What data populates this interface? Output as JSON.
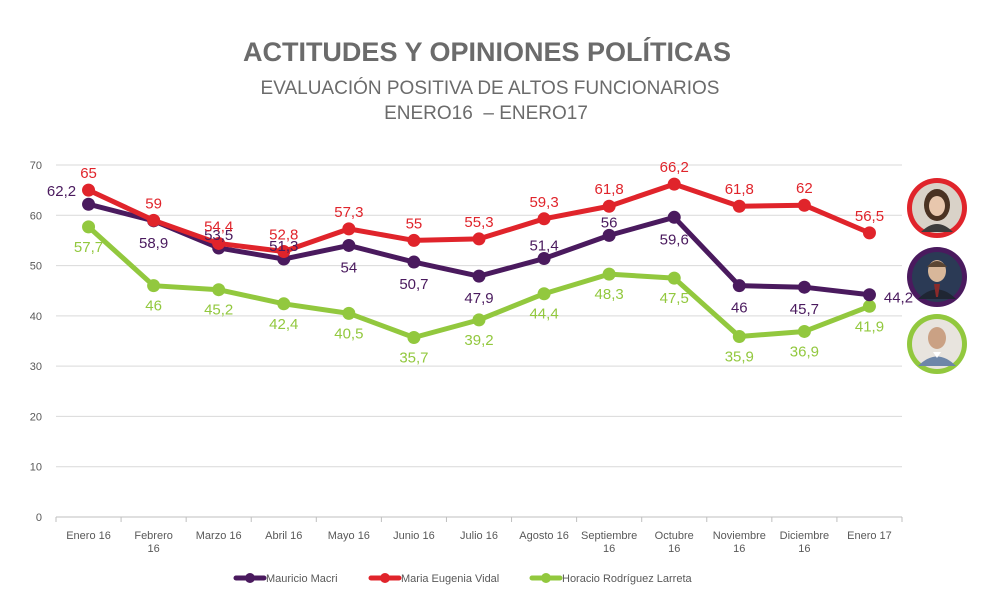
{
  "title": "ACTITUDES Y OPINIONES POLÍTICAS",
  "subtitle_line1": "EVALUACIÓN POSITIVA DE ALTOS FUNCIONARIOS",
  "subtitle_line2": "ENERO16  – ENERO17",
  "chart_data": {
    "type": "line",
    "categories": [
      "Enero 16",
      "Febrero 16",
      "Marzo 16",
      "Abril 16",
      "Mayo 16",
      "Junio 16",
      "Julio 16",
      "Agosto 16",
      "Septiembre 16",
      "Octubre 16",
      "Noviembre 16",
      "Diciembre 16",
      "Enero 17"
    ],
    "ylim": [
      0,
      70
    ],
    "yticks": [
      0,
      10,
      20,
      30,
      40,
      50,
      60,
      70
    ],
    "grid": true,
    "legend": "bottom",
    "series": [
      {
        "name": "Mauricio Macri",
        "color": "#4a1a5e",
        "values": [
          62.2,
          58.9,
          53.5,
          51.3,
          54,
          50.7,
          47.9,
          51.4,
          56,
          59.6,
          46,
          45.7,
          44.2
        ],
        "labels": [
          "62,2",
          "58,9",
          "53,5",
          "51,3",
          "54",
          "50,7",
          "47,9",
          "51,4",
          "56",
          "59,6",
          "46",
          "45,7",
          "44,2"
        ]
      },
      {
        "name": "Maria Eugenia Vidal",
        "color": "#e0242b",
        "values": [
          65,
          59,
          54.4,
          52.8,
          57.3,
          55,
          55.3,
          59.3,
          61.8,
          66.2,
          61.8,
          62,
          56.5
        ],
        "labels": [
          "65",
          "59",
          "54,4",
          "52,8",
          "57,3",
          "55",
          "55,3",
          "59,3",
          "61,8",
          "66,2",
          "61,8",
          "62",
          "56,5"
        ]
      },
      {
        "name": "Horacio Rodríguez Larreta",
        "color": "#92c83e",
        "values": [
          57.7,
          46,
          45.2,
          42.4,
          40.5,
          35.7,
          39.2,
          44.4,
          48.3,
          47.5,
          35.9,
          36.9,
          41.9
        ],
        "labels": [
          "57,7",
          "46",
          "45,2",
          "42,4",
          "40,5",
          "35,7",
          "39,2",
          "44,4",
          "48,3",
          "47,5",
          "35,9",
          "36,9",
          "41,9"
        ]
      }
    ]
  },
  "avatars": [
    {
      "ring_color": "#e0242b",
      "icon": "woman-portrait-icon"
    },
    {
      "ring_color": "#4a1a5e",
      "icon": "man-portrait-icon"
    },
    {
      "ring_color": "#92c83e",
      "icon": "bald-man-portrait-icon"
    }
  ]
}
